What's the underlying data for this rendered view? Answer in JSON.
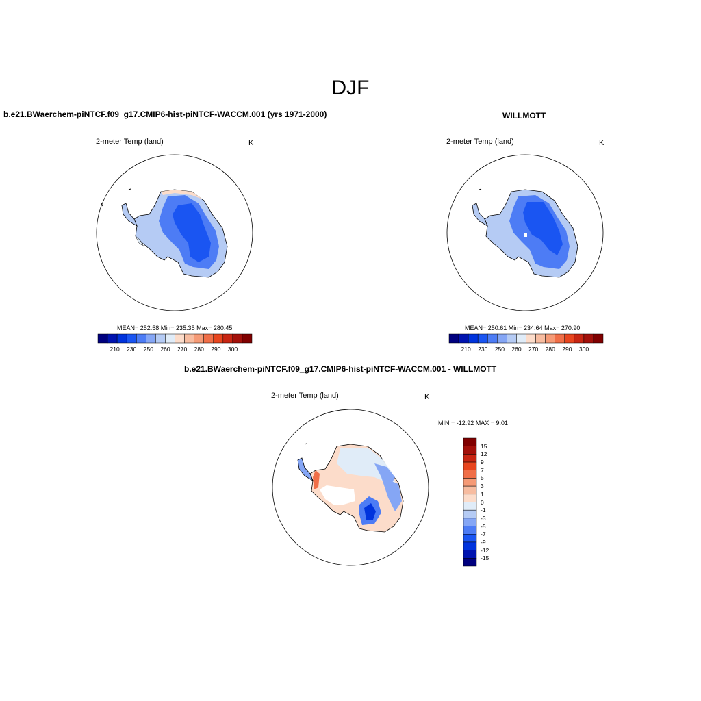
{
  "title": "DJF",
  "panels": {
    "model": {
      "title": "b.e21.BWaerchem-piNTCF.f09_g17.CMIP6-hist-piNTCF-WACCM.001 (yrs 1971-2000)",
      "variable": "2-meter Temp (land)",
      "units": "K",
      "stats": "MEAN= 252.58  Min= 235.35  Max= 280.45"
    },
    "obs": {
      "title": "WILLMOTT",
      "variable": "2-meter Temp (land)",
      "units": "K",
      "stats": "MEAN= 250.61  Min= 234.64  Max= 270.90"
    },
    "diff": {
      "title": "b.e21.BWaerchem-piNTCF.f09_g17.CMIP6-hist-piNTCF-WACCM.001 - WILLMOTT",
      "variable": "2-meter Temp (land)",
      "units": "K",
      "minmax": "MIN = -12.92 MAX =   9.01"
    }
  },
  "colorbar_abs": {
    "colors": [
      "#00007f",
      "#0013b0",
      "#0033dd",
      "#1a55f2",
      "#4d7cf5",
      "#85a6f5",
      "#b5cbf4",
      "#e0ecf8",
      "#fcdcca",
      "#f7bca0",
      "#f59a76",
      "#f06e47",
      "#e8451e",
      "#c82512",
      "#a3100a",
      "#800000"
    ],
    "tick_labels": [
      "210",
      "230",
      "250",
      "260",
      "270",
      "280",
      "290",
      "300"
    ]
  },
  "colorbar_diff": {
    "colors": [
      "#800000",
      "#a3100a",
      "#c82512",
      "#e8451e",
      "#f06e47",
      "#f59a76",
      "#f7bca0",
      "#fcdcca",
      "#e0ecf8",
      "#b5cbf4",
      "#85a6f5",
      "#4d7cf5",
      "#1a55f2",
      "#0033dd",
      "#0013b0",
      "#00007f"
    ],
    "tick_labels": [
      "15",
      "12",
      "9",
      "7",
      "5",
      "3",
      "1",
      "0",
      "-1",
      "-3",
      "-5",
      "-7",
      "-9",
      "-12",
      "-15"
    ]
  }
}
